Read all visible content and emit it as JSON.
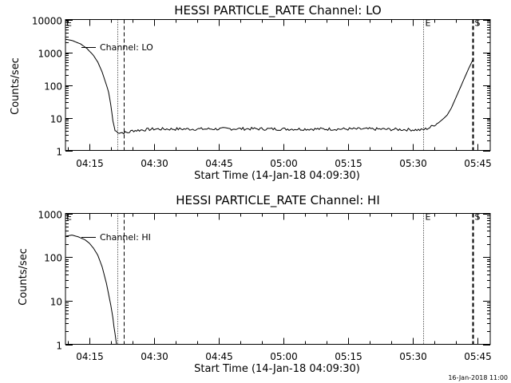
{
  "timestamp": "16-Jan-2018 11:00",
  "chart_data": [
    {
      "type": "line",
      "title": "HESSI PARTICLE_RATE Channel: LO",
      "xlabel": "Start Time (14-Jan-18 04:09:30)",
      "ylabel": "Counts/sec",
      "y_scale": "log",
      "xlim": [
        "04:09:30",
        "05:48:00"
      ],
      "ylim": [
        1,
        10000
      ],
      "x_ticks": [
        "04:15",
        "04:30",
        "04:45",
        "05:00",
        "05:15",
        "05:30",
        "05:45"
      ],
      "y_ticks": [
        "1",
        "10",
        "100",
        "1000",
        "10000"
      ],
      "series_label": "Channel: LO",
      "markers": [
        {
          "label": "E",
          "time": "04:09:30",
          "style": "none"
        },
        {
          "label": "",
          "time": "04:21:30",
          "style": "dotted"
        },
        {
          "label": "",
          "time": "04:23:00",
          "style": "dashed"
        },
        {
          "label": "E",
          "time": "05:32:30",
          "style": "dotted"
        },
        {
          "label": "S",
          "time": "05:44:00",
          "style": "dashed"
        }
      ],
      "series": [
        {
          "x": [
            "04:09:30",
            "04:11:00",
            "04:13:00",
            "04:14:30",
            "04:16:00",
            "04:17:00",
            "04:18:00",
            "04:19:00",
            "04:19:30",
            "04:20:00",
            "04:20:30",
            "04:21:00",
            "04:22:00",
            "04:23:00",
            "04:24:00",
            "04:25:00",
            "04:30:00",
            "04:40:00",
            "04:50:00",
            "05:00:00",
            "05:10:00",
            "05:20:00",
            "05:25:00",
            "05:30:00",
            "05:32:00",
            "05:33:00",
            "05:34:00",
            "05:35:00",
            "05:36:00",
            "05:37:00",
            "05:38:00",
            "05:39:00",
            "05:40:00",
            "05:41:00",
            "05:42:00",
            "05:43:00",
            "05:44:00"
          ],
          "y": [
            2500,
            2300,
            1800,
            1300,
            800,
            500,
            250,
            100,
            60,
            25,
            8,
            4,
            3.5,
            3.5,
            3.5,
            4,
            4.5,
            4.5,
            4.6,
            4.5,
            4.5,
            4.5,
            4.4,
            4.3,
            4.2,
            4.5,
            5,
            6,
            7,
            9,
            12,
            20,
            40,
            80,
            160,
            320,
            600
          ]
        }
      ]
    },
    {
      "type": "line",
      "title": "HESSI PARTICLE_RATE Channel: HI",
      "xlabel": "Start Time (14-Jan-18 04:09:30)",
      "ylabel": "Counts/sec",
      "y_scale": "log",
      "xlim": [
        "04:09:30",
        "05:48:00"
      ],
      "ylim": [
        1,
        1000
      ],
      "x_ticks": [
        "04:15",
        "04:30",
        "04:45",
        "05:00",
        "05:15",
        "05:30",
        "05:45"
      ],
      "y_ticks": [
        "1",
        "10",
        "100",
        "1000"
      ],
      "series_label": "Channel: HI",
      "markers": [
        {
          "label": "E",
          "time": "04:09:30",
          "style": "none"
        },
        {
          "label": "",
          "time": "04:21:30",
          "style": "dotted"
        },
        {
          "label": "",
          "time": "04:23:00",
          "style": "dashed"
        },
        {
          "label": "E",
          "time": "05:32:30",
          "style": "dotted"
        },
        {
          "label": "S",
          "time": "05:44:00",
          "style": "dashed"
        }
      ],
      "series": [
        {
          "x": [
            "04:09:30",
            "04:11:00",
            "04:12:30",
            "04:14:00",
            "04:15:00",
            "04:16:00",
            "04:17:00",
            "04:18:00",
            "04:19:00",
            "04:20:00",
            "04:20:30",
            "04:21:00",
            "04:21:20"
          ],
          "y": [
            300,
            320,
            290,
            250,
            210,
            160,
            110,
            60,
            25,
            8,
            4,
            1.6,
            1
          ]
        }
      ]
    }
  ]
}
